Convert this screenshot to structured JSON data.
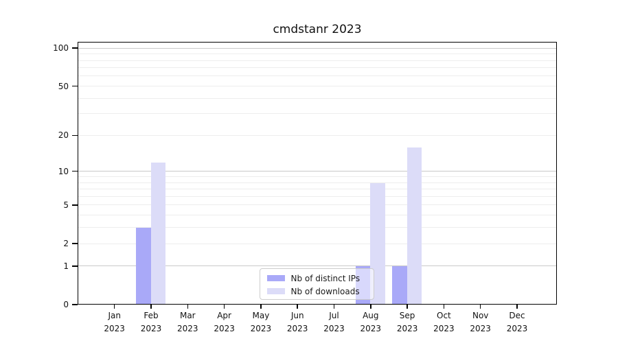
{
  "title": "cmdstanr 2023",
  "chart_data": {
    "type": "bar",
    "title": "cmdstanr 2023",
    "categories": [
      "Jan 2023",
      "Feb 2023",
      "Mar 2023",
      "Apr 2023",
      "May 2023",
      "Jun 2023",
      "Jul 2023",
      "Aug 2023",
      "Sep 2023",
      "Oct 2023",
      "Nov 2023",
      "Dec 2023"
    ],
    "series": [
      {
        "name": "Nb of distinct IPs",
        "color": "#a9a9f8",
        "values": [
          0,
          3,
          0,
          0,
          0,
          0,
          0,
          1,
          1,
          0,
          0,
          0
        ]
      },
      {
        "name": "Nb of downloads",
        "color": "#dcdcf8",
        "values": [
          0,
          12,
          0,
          0,
          0,
          0,
          0,
          8,
          16,
          0,
          0,
          0
        ]
      }
    ],
    "xlabel": "",
    "ylabel": "",
    "yscale": "log10(value+1)",
    "yticks": [
      0,
      1,
      2,
      5,
      10,
      20,
      50,
      100
    ],
    "major_gridlines": [
      1,
      10,
      100
    ],
    "minor_gridlines": [
      2,
      3,
      4,
      5,
      6,
      7,
      8,
      9,
      20,
      30,
      40,
      50,
      60,
      70,
      80,
      90
    ],
    "ylim": [
      0,
      112
    ],
    "grid": "horizontal",
    "legend_position": "lower center"
  },
  "legend": {
    "items": [
      {
        "label": "Nb of distinct IPs",
        "color": "#a9a9f8"
      },
      {
        "label": "Nb of downloads",
        "color": "#dcdcf8"
      }
    ]
  },
  "colors": {
    "background": "#ffffff",
    "spine": "#000000",
    "major_grid": "#c9c9c9",
    "minor_grid": "#ededed",
    "text": "#111111",
    "legend_border": "#cccccc"
  }
}
